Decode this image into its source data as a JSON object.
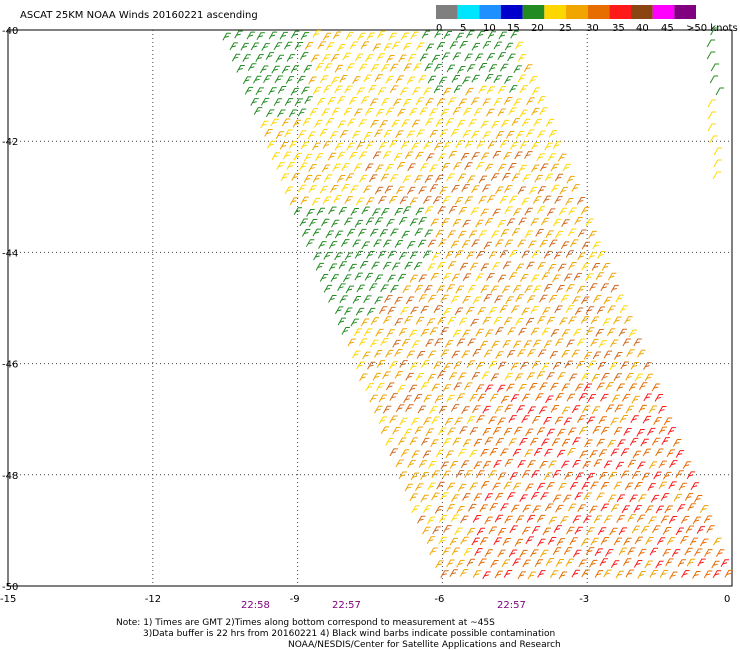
{
  "title": "ASCAT 25KM NOAA Winds 20160221 ascending",
  "legend": {
    "labels": [
      "0",
      "5",
      "10",
      "15",
      "20",
      "25",
      "30",
      "35",
      "40",
      "45",
      ">50 knots"
    ],
    "colors": [
      "#7f7f7f",
      "#00e5ff",
      "#1e90ff",
      "#0000cd",
      "#228b22",
      "#ffd700",
      "#f0a500",
      "#e86d00",
      "#ff1a1a",
      "#8b4513",
      "#ff00ff",
      "#800080"
    ]
  },
  "axes": {
    "lat_labels": [
      "-40",
      "-42",
      "-44",
      "-46",
      "-48",
      "-50"
    ],
    "lon_labels": [
      "-15",
      "-12",
      "-9",
      "-6",
      "-3",
      "0"
    ],
    "lon_range": [
      -15,
      0
    ],
    "lat_range": [
      -50,
      -40
    ]
  },
  "times": [
    "22:58",
    "22:57",
    "22:57"
  ],
  "notes": [
    "Note: 1) Times are GMT 2)Times along bottom correspond to measurement at ~45S",
    "3)Data buffer is 22 hrs from 20160221 4) Black wind barbs indicate possible contamination",
    "NOAA/NESDIS/Center for Satellite Applications and Research"
  ]
}
